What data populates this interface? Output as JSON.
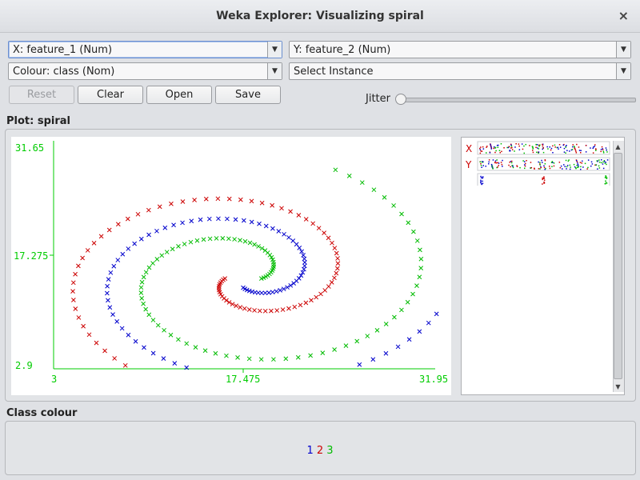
{
  "window": {
    "title": "Weka Explorer: Visualizing spiral",
    "close_glyph": "×"
  },
  "controls": {
    "x_axis": "X: feature_1 (Num)",
    "y_axis": "Y: feature_2 (Num)",
    "colour": "Colour: class (Nom)",
    "select_instance": "Select Instance",
    "reset_label": "Reset",
    "clear_label": "Clear",
    "open_label": "Open",
    "save_label": "Save",
    "jitter_label": "Jitter",
    "jitter_value": 0
  },
  "plot": {
    "section_label": "Plot: spiral",
    "x_ticks": [
      "3",
      "17.475",
      "31.95"
    ],
    "y_ticks": [
      "31.65",
      "17.275",
      "2.9"
    ],
    "axis_color": "#00cc00"
  },
  "attribute_strips": {
    "x_letter": "X",
    "y_letter": "Y"
  },
  "class_colour": {
    "section_label": "Class colour",
    "classes": [
      {
        "label": "1",
        "color": "#0000cc"
      },
      {
        "label": "2",
        "color": "#cc0000"
      },
      {
        "label": "3",
        "color": "#00bb00"
      }
    ]
  },
  "chart_data": {
    "type": "scatter",
    "xlim": [
      3,
      31.95
    ],
    "ylim": [
      2.9,
      31.65
    ],
    "marker": "x",
    "series": [
      {
        "name": "1",
        "color": "#0000cc"
      },
      {
        "name": "2",
        "color": "#cc0000"
      },
      {
        "name": "3",
        "color": "#00bb00"
      }
    ]
  }
}
